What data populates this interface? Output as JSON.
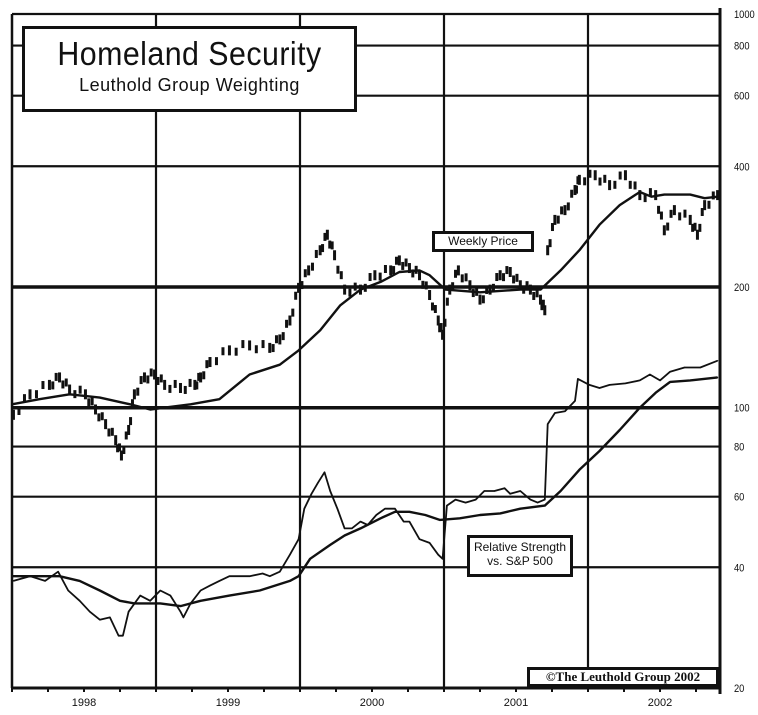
{
  "chart_data": {
    "type": "line",
    "title": "Homeland Security",
    "subtitle": "Leuthold Group Weighting",
    "xlabel": "",
    "ylabel": "",
    "x_tick_labels": [
      "1998",
      "1999",
      "2000",
      "2001",
      "2002"
    ],
    "xlim": [
      1998.0,
      2002.92
    ],
    "y_scale": "log",
    "ylim": [
      20,
      1000
    ],
    "y_tick_labels": [
      "1000",
      "800",
      "600",
      "400",
      "200",
      "100",
      "80",
      "60",
      "40",
      "20"
    ],
    "y_axis_position": "right",
    "grid": true,
    "annotations": {
      "price_label": "Weekly Price",
      "rs_label_line1": "Relative Strength",
      "rs_label_line2": "vs. S&P 500",
      "copyright": "©The Leuthold Group 2002"
    },
    "series": [
      {
        "key": "price",
        "style": "weekly-bars",
        "x": [
          1998.01,
          1998.125,
          1998.26,
          1998.33,
          1998.4,
          1998.51,
          1998.58,
          1998.65,
          1998.72,
          1998.76,
          1998.81,
          1998.85,
          1998.92,
          1998.99,
          1999.06,
          1999.17,
          1999.27,
          1999.31,
          1999.375,
          1999.51,
          1999.65,
          1999.79,
          1999.86,
          1999.93,
          1999.99,
          2000.06,
          2000.14,
          2000.19,
          2000.24,
          2000.31,
          2000.42,
          2000.52,
          2000.63,
          2000.69,
          2000.76,
          2000.83,
          2000.9,
          2000.96,
          2000.99,
          2001.04,
          2001.1,
          2001.18,
          2001.25,
          2001.32,
          2001.39,
          2001.46,
          2001.53,
          2001.6,
          2001.67,
          2001.7
        ],
        "values": [
          96,
          108,
          114,
          119,
          111,
          108,
          99,
          91,
          83,
          76,
          88,
          108,
          119,
          121,
          114,
          112,
          114,
          119,
          130,
          139,
          143,
          141,
          148,
          165,
          199,
          220,
          247,
          270,
          240,
          197,
          197,
          214,
          220,
          233,
          223,
          214,
          191,
          165,
          152,
          197,
          220,
          202,
          186,
          197,
          214,
          218,
          202,
          197,
          186,
          175
        ]
      },
      {
        "key": "price_after_gap",
        "style": "weekly-bars",
        "x": [
          2001.72,
          2001.77,
          2001.84,
          2001.91,
          2001.94,
          2002.05,
          2002.15,
          2002.26,
          2002.36,
          2002.47,
          2002.53,
          2002.6,
          2002.71,
          2002.76,
          2002.81,
          2002.9
        ],
        "values": [
          247,
          294,
          311,
          349,
          370,
          380,
          359,
          380,
          339,
          339,
          277,
          311,
          294,
          270,
          320,
          339
        ]
      },
      {
        "key": "price_ma",
        "style": "line",
        "x": [
          1998.0,
          1998.19,
          1998.4,
          1998.61,
          1998.82,
          1998.96,
          1999.24,
          1999.44,
          1999.65,
          1999.86,
          1999.99,
          2000.14,
          2000.28,
          2000.42,
          2000.56,
          2000.69,
          2000.83,
          2000.9,
          2001.01,
          2001.25,
          2001.53,
          2001.67,
          2001.81,
          2001.94,
          2002.08,
          2002.22,
          2002.36,
          2002.44,
          2002.53,
          2002.71,
          2002.81,
          2002.9
        ],
        "values": [
          102,
          105,
          108,
          106,
          102,
          99,
          102,
          105,
          121,
          128,
          139,
          156,
          180,
          197,
          206,
          218,
          220,
          214,
          197,
          194,
          197,
          197,
          220,
          247,
          286,
          320,
          345,
          336,
          340,
          340,
          333,
          336
        ]
      },
      {
        "key": "relative_strength",
        "style": "line",
        "x": [
          1998.01,
          1998.125,
          1998.23,
          1998.32,
          1998.39,
          1998.47,
          1998.54,
          1998.61,
          1998.68,
          1998.74,
          1998.77,
          1998.81,
          1998.89,
          1998.96,
          1999.03,
          1999.1,
          1999.17,
          1999.19,
          1999.24,
          1999.31,
          1999.375,
          1999.44,
          1999.51,
          1999.58,
          1999.65,
          1999.74,
          1999.79,
          1999.86,
          1999.93,
          1999.99,
          2000.03,
          2000.08,
          2000.125,
          2000.17,
          2000.21,
          2000.26,
          2000.31,
          2000.36,
          2000.42,
          2000.47,
          2000.53,
          2000.59,
          2000.66,
          2000.72,
          2000.76,
          2000.83,
          2000.9,
          2000.96,
          2000.99,
          2001.02,
          2001.08,
          2001.15,
          2001.22,
          2001.28,
          2001.35,
          2001.42,
          2001.46,
          2001.53,
          2001.6,
          2001.65,
          2001.7,
          2001.72,
          2001.77,
          2001.84,
          2001.91,
          2001.93,
          2002.01,
          2002.08,
          2002.15,
          2002.26,
          2002.36,
          2002.43,
          2002.5,
          2002.57,
          2002.67,
          2002.78,
          2002.9
        ],
        "values": [
          37,
          38,
          37,
          39,
          35,
          33,
          31,
          29.6,
          30,
          27,
          27,
          31,
          34,
          33,
          35,
          34,
          31,
          30,
          32.5,
          35,
          36,
          37,
          38,
          38,
          38,
          38.6,
          38,
          39,
          43,
          47,
          56,
          61,
          65,
          69,
          62,
          56,
          50,
          50,
          52,
          51,
          54,
          56,
          56,
          52,
          52,
          47,
          46,
          43,
          42,
          57,
          59,
          58,
          59,
          62,
          62,
          63,
          61,
          62,
          59,
          58,
          59,
          91,
          97,
          98,
          104,
          118,
          114,
          112,
          114,
          115,
          117,
          121,
          117,
          123,
          126,
          126,
          131
        ]
      },
      {
        "key": "relative_strength_ma",
        "style": "line",
        "x": [
          1998.0,
          1998.33,
          1998.47,
          1998.61,
          1998.75,
          1998.85,
          1999.03,
          1999.17,
          1999.31,
          1999.51,
          1999.72,
          1999.93,
          1999.99,
          2000.07,
          2000.21,
          2000.31,
          2000.42,
          2000.56,
          2000.66,
          2000.76,
          2000.87,
          2000.97,
          2001.11,
          2001.25,
          2001.39,
          2001.53,
          2001.7,
          2001.81,
          2001.94,
          2002.08,
          2002.22,
          2002.36,
          2002.47,
          2002.57,
          2002.71,
          2002.9
        ],
        "values": [
          38,
          38,
          37,
          35,
          33,
          32.5,
          32.5,
          32,
          33,
          34,
          35,
          37,
          38,
          42,
          45.5,
          48,
          50,
          53,
          55,
          55,
          54,
          52.5,
          53,
          54,
          54.5,
          56,
          57,
          62,
          70,
          78,
          88,
          100,
          109,
          116,
          117,
          119
        ]
      }
    ]
  }
}
